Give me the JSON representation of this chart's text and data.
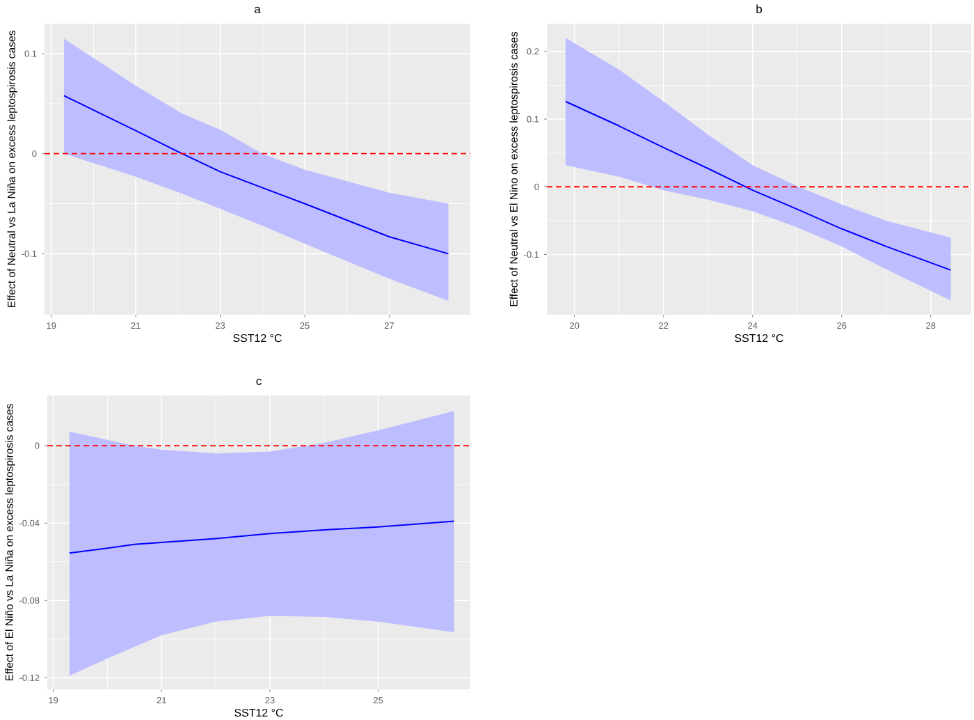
{
  "chart_data": [
    {
      "type": "line",
      "title": "a",
      "xlabel": "SST12 °C",
      "ylabel": "Effect of Neutral vs La Niña on excess leptospirosis cases",
      "x": [
        19.3,
        21,
        22.1,
        23,
        24,
        25,
        27,
        28.4
      ],
      "series": [
        {
          "color": "#0000ff",
          "values": [
            0.058,
            0.023,
            0.0,
            -0.018,
            -0.034,
            -0.05,
            -0.083,
            -0.1
          ],
          "lower": [
            0.0,
            -0.023,
            -0.04,
            -0.055,
            -0.072,
            -0.09,
            -0.125,
            -0.147
          ],
          "upper": [
            0.115,
            0.068,
            0.04,
            0.024,
            0.0,
            -0.016,
            -0.039,
            -0.05
          ]
        }
      ],
      "xlim": [
        18.84,
        28.92
      ],
      "ylim": [
        -0.161,
        0.13
      ],
      "xticks": [
        19,
        21,
        23,
        25,
        27
      ],
      "yticks": [
        -0.1,
        0,
        0.1
      ],
      "grid": true,
      "ref_lines": [
        {
          "axis": "y",
          "value": 0,
          "color": "#ff0000",
          "line_style": "dashed"
        }
      ]
    },
    {
      "type": "line",
      "title": "b",
      "xlabel": "SST12 °C",
      "ylabel": "Effect of Neutral vs El Nino on excess leptospirosis cases",
      "x": [
        19.8,
        21,
        22,
        23,
        24,
        25,
        26,
        27,
        28.45
      ],
      "series": [
        {
          "color": "#0000ff",
          "values": [
            0.126,
            0.09,
            0.058,
            0.027,
            -0.005,
            -0.033,
            -0.062,
            -0.088,
            -0.123
          ],
          "lower": [
            0.032,
            0.015,
            -0.005,
            -0.019,
            -0.036,
            -0.06,
            -0.088,
            -0.122,
            -0.168
          ],
          "upper": [
            0.22,
            0.173,
            0.126,
            0.077,
            0.032,
            0.001,
            -0.026,
            -0.05,
            -0.075
          ]
        }
      ],
      "xlim": [
        19.38,
        28.91
      ],
      "ylim": [
        -0.189,
        0.241
      ],
      "xticks": [
        20,
        22,
        24,
        26,
        28
      ],
      "yticks": [
        -0.1,
        0,
        0.1,
        0.2
      ],
      "grid": true,
      "ref_lines": [
        {
          "axis": "y",
          "value": 0,
          "color": "#ff0000",
          "line_style": "dashed"
        }
      ]
    },
    {
      "type": "line",
      "title": "c",
      "xlabel": "SST12 °C",
      "ylabel": "Effect of El Niño vs La Niña on excess leptospirosis cases",
      "x": [
        19.3,
        20,
        20.5,
        21,
        22,
        23,
        24,
        25,
        26.4
      ],
      "series": [
        {
          "color": "#0000ff",
          "values": [
            -0.0555,
            -0.053,
            -0.051,
            -0.05,
            -0.048,
            -0.0454,
            -0.0435,
            -0.042,
            -0.039
          ],
          "lower": [
            -0.119,
            -0.11,
            -0.104,
            -0.098,
            -0.091,
            -0.088,
            -0.0885,
            -0.091,
            -0.0965
          ],
          "upper": [
            0.0074,
            0.003,
            0.0,
            -0.002,
            -0.004,
            -0.003,
            0.0015,
            0.008,
            0.018
          ]
        }
      ],
      "xlim": [
        18.89,
        26.7
      ],
      "ylim": [
        -0.126,
        0.026
      ],
      "xticks": [
        19,
        21,
        23,
        25
      ],
      "yticks": [
        -0.12,
        -0.08,
        -0.04,
        0
      ],
      "grid": true,
      "ref_lines": [
        {
          "axis": "y",
          "value": 0,
          "color": "#ff0000",
          "line_style": "dashed"
        }
      ]
    }
  ]
}
